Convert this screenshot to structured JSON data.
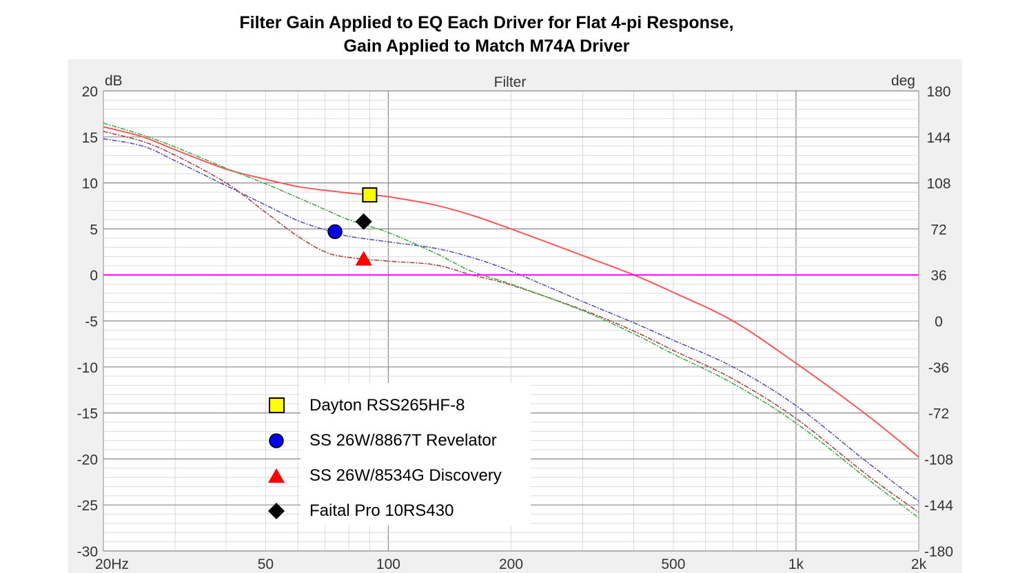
{
  "title": {
    "line1": "Filter Gain Applied to EQ Each Driver for Flat 4-pi Response,",
    "line2": "Gain Applied to Match M74A Driver"
  },
  "chart_data": {
    "type": "line",
    "title": "Filter",
    "ylabel": "dB",
    "y2label": "deg",
    "xscale": "log",
    "xlim": [
      20,
      2000
    ],
    "ylim": [
      -30,
      20
    ],
    "y2lim": [
      -180,
      180
    ],
    "x_ticks": [
      "20Hz",
      "50",
      "100",
      "200",
      "500",
      "1k",
      "2k"
    ],
    "x_tick_values": [
      20,
      50,
      100,
      200,
      500,
      1000,
      2000
    ],
    "y_ticks": [
      20,
      15,
      10,
      5,
      0,
      -5,
      -10,
      -15,
      -20,
      -25,
      -30
    ],
    "y2_ticks": [
      180,
      144,
      108,
      72,
      36,
      0,
      -36,
      -72,
      -108,
      -144,
      -180
    ],
    "grid": true,
    "series": [
      {
        "name": "Dayton RSS265HF-8",
        "color": "#ff5555",
        "dash": "solid",
        "x": [
          20,
          25,
          30,
          40,
          50,
          60,
          70,
          80,
          90,
          100,
          130,
          160,
          200,
          300,
          400,
          500,
          700,
          1000,
          1500,
          2000
        ],
        "y": [
          16.1,
          15.0,
          13.6,
          11.5,
          10.4,
          9.6,
          9.2,
          8.9,
          8.7,
          8.5,
          7.6,
          6.5,
          5.0,
          2.1,
          0.0,
          -1.9,
          -5.0,
          -9.6,
          -15.3,
          -19.8
        ]
      },
      {
        "name": "SS 26W/8867T Revelator",
        "color": "#5555bb",
        "dash": "dashdot",
        "x": [
          20,
          25,
          30,
          40,
          50,
          60,
          70,
          80,
          100,
          130,
          160,
          200,
          300,
          400,
          500,
          700,
          1000,
          1500,
          2000
        ],
        "y": [
          14.8,
          14.0,
          12.4,
          9.7,
          7.6,
          5.9,
          4.9,
          4.2,
          3.6,
          2.9,
          1.9,
          0.4,
          -2.9,
          -5.2,
          -7.1,
          -10.0,
          -14.2,
          -20.4,
          -24.6
        ]
      },
      {
        "name": "SS 26W/8534G Discovery",
        "color": "#aa4444",
        "dash": "dashdot",
        "x": [
          20,
          25,
          30,
          40,
          50,
          60,
          70,
          80,
          100,
          130,
          160,
          200,
          300,
          400,
          500,
          700,
          1000,
          1500,
          2000
        ],
        "y": [
          15.6,
          14.5,
          13.0,
          10.0,
          6.8,
          4.2,
          2.5,
          1.9,
          1.5,
          1.1,
          0.0,
          -1.1,
          -3.8,
          -6.1,
          -8.2,
          -11.3,
          -15.6,
          -21.8,
          -25.8
        ]
      },
      {
        "name": "Faital Pro 10RS430",
        "color": "#44aa44",
        "dash": "dashdot",
        "x": [
          20,
          25,
          30,
          40,
          50,
          60,
          70,
          80,
          100,
          130,
          160,
          200,
          300,
          400,
          500,
          700,
          1000,
          1500,
          2000
        ],
        "y": [
          16.5,
          15.2,
          13.9,
          11.6,
          9.9,
          8.4,
          7.1,
          6.0,
          4.6,
          2.4,
          0.4,
          -1.0,
          -3.9,
          -6.4,
          -8.6,
          -11.8,
          -16.1,
          -22.2,
          -26.4
        ]
      },
      {
        "name": "0 dB reference",
        "color": "#ff00ff",
        "dash": "solid",
        "x": [
          20,
          2000
        ],
        "y": [
          0,
          0
        ]
      }
    ],
    "markers": [
      {
        "label": "Dayton RSS265HF-8",
        "shape": "square",
        "color": "#ffff00",
        "x": 90,
        "y": 8.7
      },
      {
        "label": "SS 26W/8867T Revelator",
        "shape": "circle",
        "color": "#0000ee",
        "x": 74,
        "y": 4.7
      },
      {
        "label": "SS 26W/8534G Discovery",
        "shape": "triangle",
        "color": "#ff0000",
        "x": 87,
        "y": 1.7
      },
      {
        "label": "Faital Pro 10RS430",
        "shape": "diamond",
        "color": "#000000",
        "x": 87,
        "y": 5.8
      }
    ],
    "legend": {
      "placement": "bottom-center",
      "items": [
        {
          "label": "Dayton RSS265HF-8",
          "shape": "square",
          "color": "#ffff00"
        },
        {
          "label": "SS 26W/8867T Revelator",
          "shape": "circle",
          "color": "#0000ee"
        },
        {
          "label": "SS 26W/8534G Discovery",
          "shape": "triangle",
          "color": "#ff0000"
        },
        {
          "label": "Faital Pro 10RS430",
          "shape": "diamond",
          "color": "#000000"
        }
      ]
    }
  }
}
